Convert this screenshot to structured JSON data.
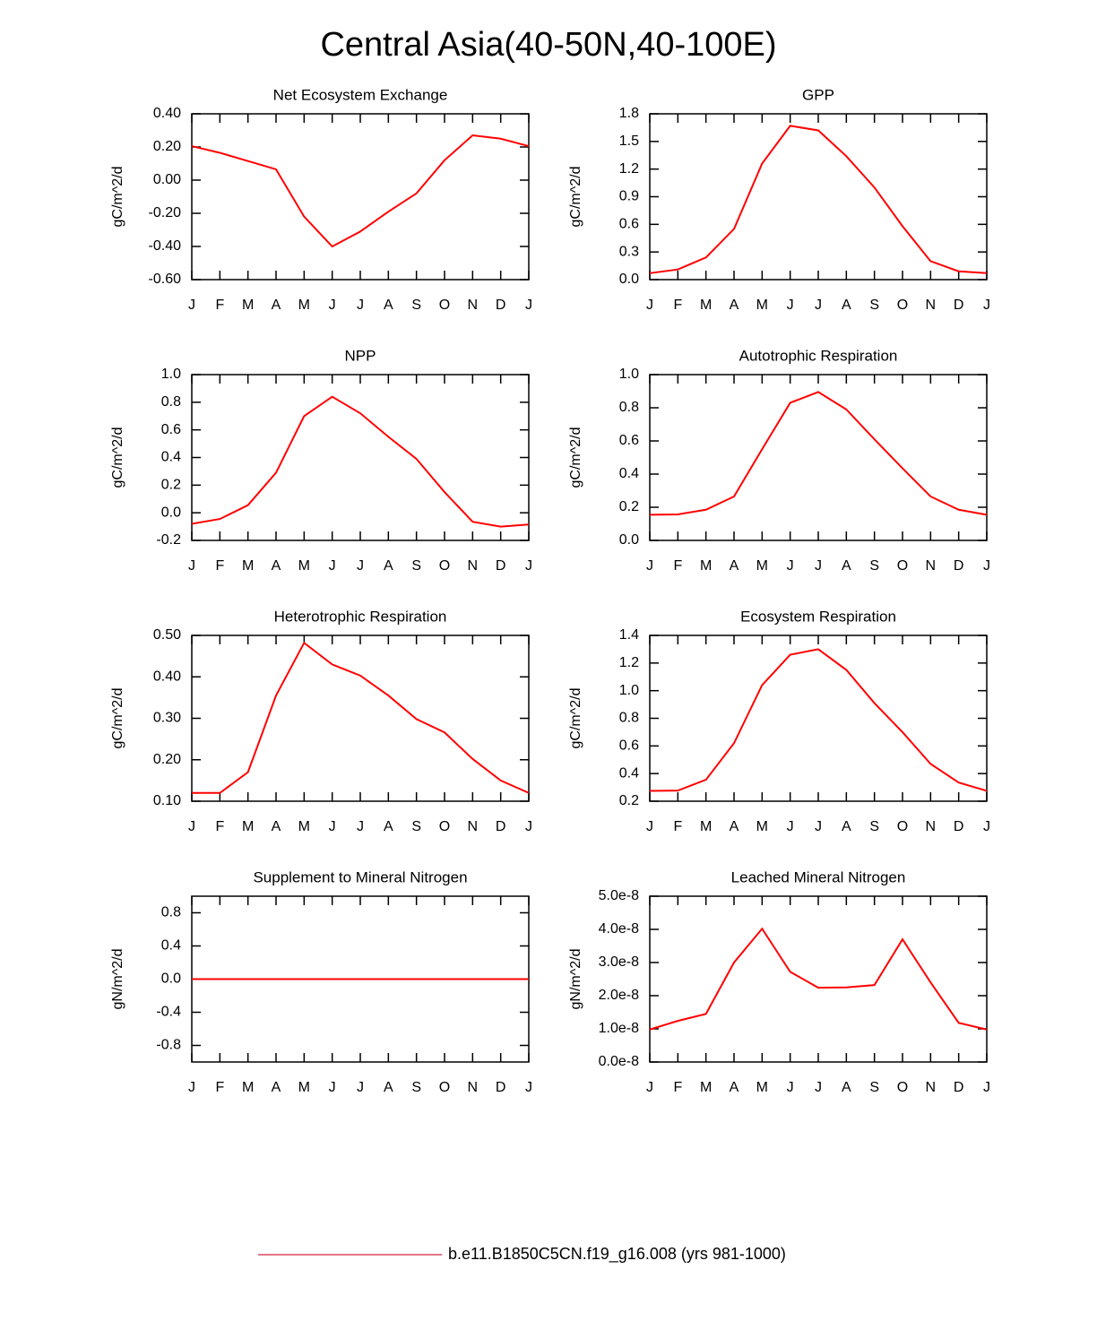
{
  "title": "Central Asia(40-50N,40-100E)",
  "legend": {
    "name": "b.e11.B1850C5CN.f19_g16.008 (yrs 981-1000)",
    "color": "#d9485e"
  },
  "chart_data": [
    {
      "type": "line",
      "title": "Net Ecosystem Exchange",
      "ylabel": "gC/m^2/d",
      "categories": [
        "J",
        "F",
        "M",
        "A",
        "M",
        "J",
        "J",
        "A",
        "S",
        "O",
        "N",
        "D",
        "J"
      ],
      "series": [
        {
          "color": "red",
          "values": [
            0.205,
            0.165,
            0.115,
            0.065,
            -0.22,
            -0.4,
            -0.31,
            -0.19,
            -0.08,
            0.12,
            0.27,
            0.25,
            0.205
          ]
        }
      ],
      "ylim": [
        -0.6,
        0.4
      ],
      "yticks": [
        {
          "value": -0.6,
          "label": "-0.60"
        },
        {
          "value": -0.4,
          "label": "-0.40"
        },
        {
          "value": -0.2,
          "label": "-0.20"
        },
        {
          "value": 0,
          "label": "0.00"
        },
        {
          "value": 0.2,
          "label": "0.20"
        },
        {
          "value": 0.4,
          "label": "0.40"
        }
      ]
    },
    {
      "type": "line",
      "title": "GPP",
      "ylabel": "gC/m^2/d",
      "categories": [
        "J",
        "F",
        "M",
        "A",
        "M",
        "J",
        "J",
        "A",
        "S",
        "O",
        "N",
        "D",
        "J"
      ],
      "series": [
        {
          "color": "red",
          "values": [
            0.07,
            0.11,
            0.24,
            0.55,
            1.26,
            1.67,
            1.62,
            1.34,
            1.0,
            0.58,
            0.2,
            0.09,
            0.07
          ]
        }
      ],
      "ylim": [
        0,
        1.8
      ],
      "yticks": [
        {
          "value": 0,
          "label": "0.0"
        },
        0.3,
        0.6,
        0.9,
        1.2,
        1.5,
        1.8
      ]
    },
    {
      "type": "line",
      "title": "NPP",
      "ylabel": "gC/m^2/d",
      "categories": [
        "J",
        "F",
        "M",
        "A",
        "M",
        "J",
        "J",
        "A",
        "S",
        "O",
        "N",
        "D",
        "J"
      ],
      "series": [
        {
          "color": "red",
          "values": [
            -0.08,
            -0.045,
            0.055,
            0.29,
            0.7,
            0.84,
            0.72,
            0.55,
            0.39,
            0.15,
            -0.065,
            -0.1,
            -0.085
          ]
        }
      ],
      "ylim": [
        -0.2,
        1.0
      ],
      "yticks": [
        -0.2,
        {
          "value": 0,
          "label": "0.0"
        },
        0.2,
        0.4,
        0.6,
        0.8,
        {
          "value": 1,
          "label": "1.0"
        }
      ]
    },
    {
      "type": "line",
      "title": "Autotrophic Respiration",
      "ylabel": "gC/m^2/d",
      "categories": [
        "J",
        "F",
        "M",
        "A",
        "M",
        "J",
        "J",
        "A",
        "S",
        "O",
        "N",
        "D",
        "J"
      ],
      "series": [
        {
          "color": "red",
          "values": [
            0.155,
            0.157,
            0.185,
            0.265,
            0.55,
            0.83,
            0.895,
            0.79,
            0.61,
            0.435,
            0.265,
            0.185,
            0.155
          ]
        }
      ],
      "ylim": [
        0,
        1.0
      ],
      "yticks": [
        {
          "value": 0,
          "label": "0.0"
        },
        0.2,
        0.4,
        0.6,
        0.8,
        {
          "value": 1,
          "label": "1.0"
        }
      ]
    },
    {
      "type": "line",
      "title": "Heterotrophic Respiration",
      "ylabel": "gC/m^2/d",
      "categories": [
        "J",
        "F",
        "M",
        "A",
        "M",
        "J",
        "J",
        "A",
        "S",
        "O",
        "N",
        "D",
        "J"
      ],
      "series": [
        {
          "color": "red",
          "values": [
            0.12,
            0.12,
            0.17,
            0.355,
            0.482,
            0.43,
            0.403,
            0.355,
            0.298,
            0.266,
            0.202,
            0.15,
            0.12
          ]
        }
      ],
      "ylim": [
        0.1,
        0.5
      ],
      "yticks": [
        {
          "value": 0.1,
          "label": "0.10"
        },
        {
          "value": 0.2,
          "label": "0.20"
        },
        {
          "value": 0.3,
          "label": "0.30"
        },
        {
          "value": 0.4,
          "label": "0.40"
        },
        {
          "value": 0.5,
          "label": "0.50"
        }
      ]
    },
    {
      "type": "line",
      "title": "Ecosystem Respiration",
      "ylabel": "gC/m^2/d",
      "categories": [
        "J",
        "F",
        "M",
        "A",
        "M",
        "J",
        "J",
        "A",
        "S",
        "O",
        "N",
        "D",
        "J"
      ],
      "series": [
        {
          "color": "red",
          "values": [
            0.275,
            0.277,
            0.355,
            0.62,
            1.04,
            1.26,
            1.3,
            1.15,
            0.91,
            0.7,
            0.47,
            0.335,
            0.275
          ]
        }
      ],
      "ylim": [
        0.2,
        1.4
      ],
      "yticks": [
        0.2,
        0.4,
        0.6,
        0.8,
        {
          "value": 1,
          "label": "1.0"
        },
        1.2,
        1.4
      ]
    },
    {
      "type": "line",
      "title": "Supplement to Mineral Nitrogen",
      "ylabel": "gN/m^2/d",
      "categories": [
        "J",
        "F",
        "M",
        "A",
        "M",
        "J",
        "J",
        "A",
        "S",
        "O",
        "N",
        "D",
        "J"
      ],
      "series": [
        {
          "color": "red",
          "values": [
            0,
            0,
            0,
            0,
            0,
            0,
            0,
            0,
            0,
            0,
            0,
            0,
            0
          ]
        }
      ],
      "ylim": [
        -1.0,
        1.0
      ],
      "yticks": [
        -0.8,
        -0.4,
        {
          "value": 0,
          "label": "0.0"
        },
        0.4,
        0.8
      ]
    },
    {
      "type": "line",
      "title": "Leached Mineral Nitrogen",
      "ylabel": "gN/m^2/d",
      "categories": [
        "J",
        "F",
        "M",
        "A",
        "M",
        "J",
        "J",
        "A",
        "S",
        "O",
        "N",
        "D",
        "J"
      ],
      "series": [
        {
          "color": "red",
          "values": [
            9.8e-09,
            1.24e-08,
            1.45e-08,
            3e-08,
            4.02e-08,
            2.72e-08,
            2.24e-08,
            2.25e-08,
            2.32e-08,
            3.7e-08,
            2.4e-08,
            1.18e-08,
            9.8e-09
          ]
        }
      ],
      "ylim": [
        0,
        5e-08
      ],
      "yticks": [
        {
          "value": 0,
          "label": "0.0e-8"
        },
        {
          "value": 1e-08,
          "label": "1.0e-8"
        },
        {
          "value": 2e-08,
          "label": "2.0e-8"
        },
        {
          "value": 3e-08,
          "label": "3.0e-8"
        },
        {
          "value": 4e-08,
          "label": "4.0e-8"
        },
        {
          "value": 5e-08,
          "label": "5.0e-8"
        }
      ]
    }
  ]
}
